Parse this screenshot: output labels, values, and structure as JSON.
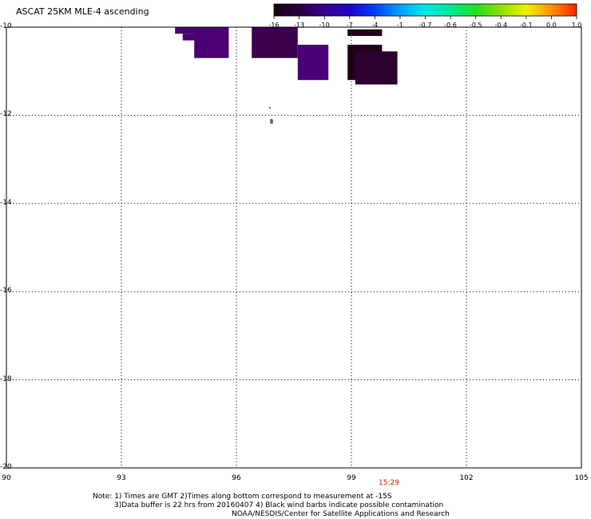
{
  "header": {
    "title": "ASCAT 25KM MLE-4 ascending"
  },
  "colorbar": {
    "labels": [
      "-16",
      "-13",
      "-10",
      "-7",
      "-4",
      "-1",
      "-0.7",
      "-0.6",
      "-0.5",
      "-0.4",
      "-0.1",
      "0.0",
      "1.0"
    ],
    "colors": [
      "#1a0010",
      "#2a0040",
      "#3a0090",
      "#2000c8",
      "#0040ff",
      "#00a0ff",
      "#00e8e8",
      "#00e890",
      "#20e020",
      "#90e000",
      "#f0f000",
      "#ff9000",
      "#ff2000"
    ]
  },
  "axes": {
    "x_ticks": [
      "90",
      "93",
      "96",
      "99",
      "102",
      "105"
    ],
    "y_ticks": [
      "-10",
      "-12",
      "-14",
      "-16",
      "-18",
      "-20"
    ],
    "x_range": [
      90,
      105
    ],
    "y_range": [
      -20,
      -10
    ],
    "grid": "dotted"
  },
  "timestamp": "15:29",
  "notes": {
    "line1": "Note: 1) Times are GMT 2)Times along bottom correspond to measurement at -15S",
    "line2": "3)Data buffer is 22 hrs from 20160407 4) Black wind barbs indicate possible contamination",
    "line3": "NOAA/NESDIS/Center for Satellite Applications and Research"
  },
  "chart_data": {
    "type": "heatmap",
    "title": "ASCAT 25KM MLE-4 ascending",
    "xlabel": "",
    "ylabel": "",
    "xlim": [
      90,
      105
    ],
    "ylim": [
      -20,
      -10
    ],
    "cells": [
      {
        "lon0": 94.4,
        "lon1": 95.0,
        "lat0": -10.15,
        "lat1": -10.0,
        "value": -13
      },
      {
        "lon0": 94.6,
        "lon1": 95.0,
        "lat0": -10.3,
        "lat1": -10.15,
        "value": -13
      },
      {
        "lon0": 94.9,
        "lon1": 95.8,
        "lat0": -10.7,
        "lat1": -10.0,
        "value": -13
      },
      {
        "lon0": 96.4,
        "lon1": 97.6,
        "lat0": -10.7,
        "lat1": -10.0,
        "value": -14
      },
      {
        "lon0": 97.6,
        "lon1": 98.4,
        "lat0": -11.2,
        "lat1": -10.4,
        "value": -12
      },
      {
        "lon0": 98.9,
        "lon1": 99.8,
        "lat0": -10.2,
        "lat1": -10.05,
        "value": -16
      },
      {
        "lon0": 98.9,
        "lon1": 99.8,
        "lat0": -11.2,
        "lat1": -10.4,
        "value": -16
      },
      {
        "lon0": 99.1,
        "lon1": 100.2,
        "lat0": -11.3,
        "lat1": -10.55,
        "value": -15
      }
    ]
  }
}
